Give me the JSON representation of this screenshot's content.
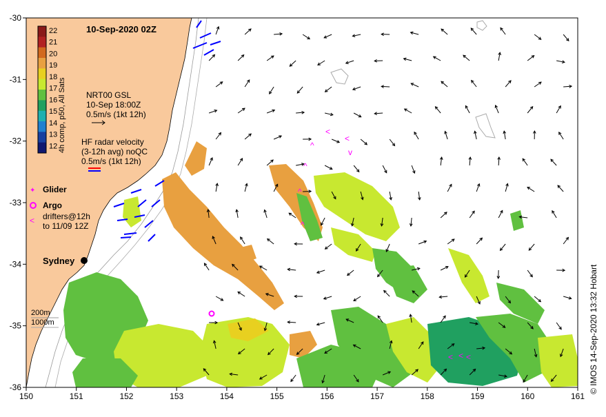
{
  "title": "10-Sep-2020 02Z",
  "colorbar": {
    "label": "4h comp, p50, All Sats",
    "ticks": [
      "22",
      "21",
      "20",
      "19",
      "18",
      "17",
      "16",
      "15",
      "14",
      "13",
      "12"
    ],
    "colors": [
      "#8b1a1a",
      "#b22222",
      "#d2691e",
      "#e8a040",
      "#e8d020",
      "#c8e830",
      "#60c040",
      "#20a060",
      "#20b0b0",
      "#2080d0",
      "#1840a0",
      "#101870"
    ]
  },
  "gsl": {
    "line1": "NRT00 GSL",
    "line2": "10-Sep 18:00Z",
    "line3": "0.5m/s (1kt 12h)"
  },
  "hf": {
    "line1": "HF radar velocity",
    "line2": "(3-12h avg) noQC",
    "line3": "0.5m/s (1kt 12h)"
  },
  "legend": {
    "glider": "Glider",
    "argo": "Argo",
    "drifters1": "drifters@12h",
    "drifters2": "to 11/09 12Z"
  },
  "city": "Sydney",
  "contours": {
    "c200": "200m",
    "c1000": "1000m"
  },
  "credit": "© IMOS 14-Sep-2020 13:32 Hobart",
  "axes": {
    "x_ticks": [
      "150",
      "151",
      "152",
      "153",
      "154",
      "155",
      "156",
      "157",
      "158",
      "159",
      "160",
      "161"
    ],
    "y_ticks": [
      "-30",
      "-31",
      "-32",
      "-33",
      "-34",
      "-35",
      "-36"
    ],
    "lon_range": [
      150,
      161
    ],
    "lat_range": [
      -36,
      -30
    ]
  },
  "colors": {
    "land": "#f9c99c",
    "glider": "#ff00ff",
    "hf_radar": "#0000ff"
  }
}
